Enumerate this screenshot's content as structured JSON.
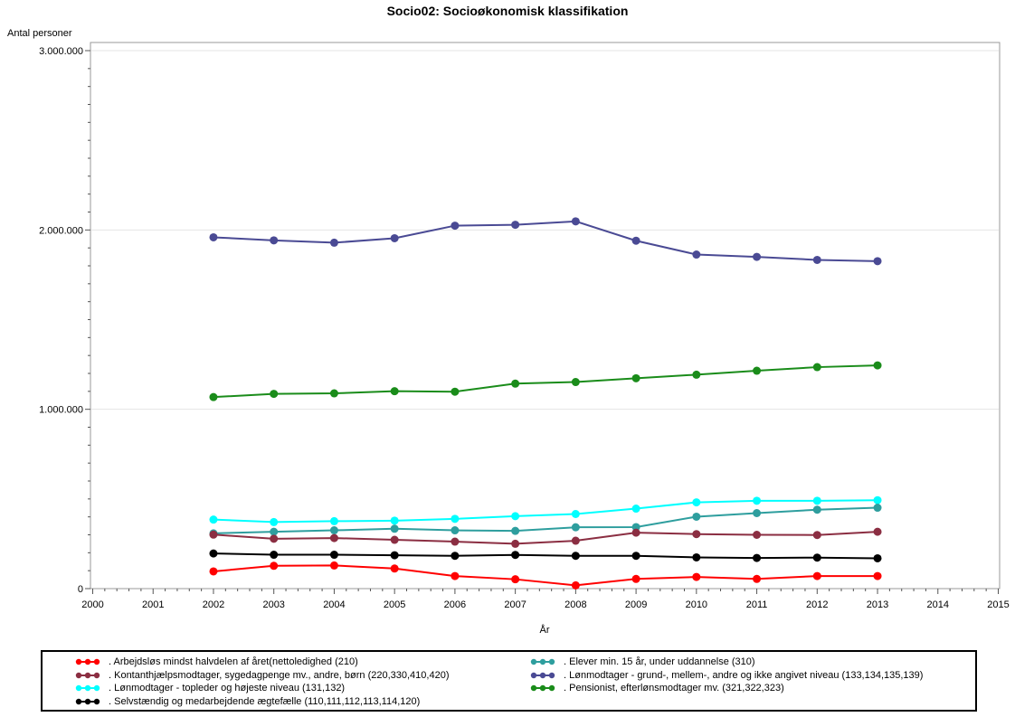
{
  "title": "Socio02: Socioøkonomisk klassifikation",
  "chart_data": {
    "type": "line",
    "title": "Socio02: Socioøkonomisk klassifikation",
    "xlabel": "År",
    "ylabel": "Antal personer",
    "xlim": [
      2000,
      2015
    ],
    "ylim": [
      0,
      3000000
    ],
    "grid": "horizontal-major",
    "legend_position": "bottom",
    "x_tick_labels": [
      "2000",
      "2001",
      "2002",
      "2003",
      "2004",
      "2005",
      "2006",
      "2007",
      "2008",
      "2009",
      "2010",
      "2011",
      "2012",
      "2013",
      "2014",
      "2015"
    ],
    "y_tick_labels": [
      "0",
      "1.000.000",
      "2.000.000",
      "3.000.000"
    ],
    "y_major_step": 1000000,
    "y_minor_step": 100000,
    "x_minor_divisions": 5,
    "x": [
      2002,
      2003,
      2004,
      2005,
      2006,
      2007,
      2008,
      2009,
      2010,
      2011,
      2012,
      2013
    ],
    "series": [
      {
        "name": ". Arbejdsløs mindst halvdelen af året(nettoledighed (210)",
        "color": "#FF0000",
        "legend_column": "left",
        "values": [
          96000,
          127000,
          129000,
          112000,
          70000,
          52000,
          18000,
          54000,
          65000,
          54000,
          70000,
          70000
        ]
      },
      {
        "name": ". Kontanthjælpsmodtager, sygedagpenge mv., andre, børn (220,330,410,420)",
        "color": "#8B2E42",
        "legend_column": "left",
        "values": [
          301000,
          278000,
          282000,
          272000,
          262000,
          250000,
          267000,
          312000,
          304000,
          300000,
          299000,
          317000
        ]
      },
      {
        "name": ". Lønmodtager - topleder og højeste niveau (131,132)",
        "color": "#00FFFF",
        "legend_column": "left",
        "values": [
          385000,
          371000,
          376000,
          379000,
          389000,
          404000,
          416000,
          446000,
          481000,
          490000,
          490000,
          493000
        ]
      },
      {
        "name": ". Selvstændig og medarbejdende ægtefælle (110,111,112,113,114,120)",
        "color": "#000000",
        "legend_column": "left",
        "values": [
          196000,
          189000,
          189000,
          186000,
          183000,
          188000,
          183000,
          183000,
          174000,
          171000,
          173000,
          169000
        ]
      },
      {
        "name": ". Elever min. 15 år, under uddannelse (310)",
        "color": "#2E9E9E",
        "legend_column": "right",
        "values": [
          308000,
          317000,
          325000,
          334000,
          325000,
          322000,
          342000,
          343000,
          401000,
          421000,
          440000,
          451000
        ]
      },
      {
        "name": ". Lønmodtager - grund-, mellem-, andre og ikke angivet niveau (133,134,135,139)",
        "color": "#4A4A94",
        "legend_column": "right",
        "values": [
          1959000,
          1942000,
          1929000,
          1954000,
          2024000,
          2029000,
          2048000,
          1940000,
          1863000,
          1850000,
          1833000,
          1826000
        ]
      },
      {
        "name": ". Pensionist, efterlønsmodtager mv. (321,322,323)",
        "color": "#1A8C1A",
        "legend_column": "right",
        "values": [
          1068000,
          1086000,
          1089000,
          1101000,
          1098000,
          1143000,
          1152000,
          1173000,
          1193000,
          1215000,
          1235000,
          1245000
        ]
      }
    ]
  }
}
